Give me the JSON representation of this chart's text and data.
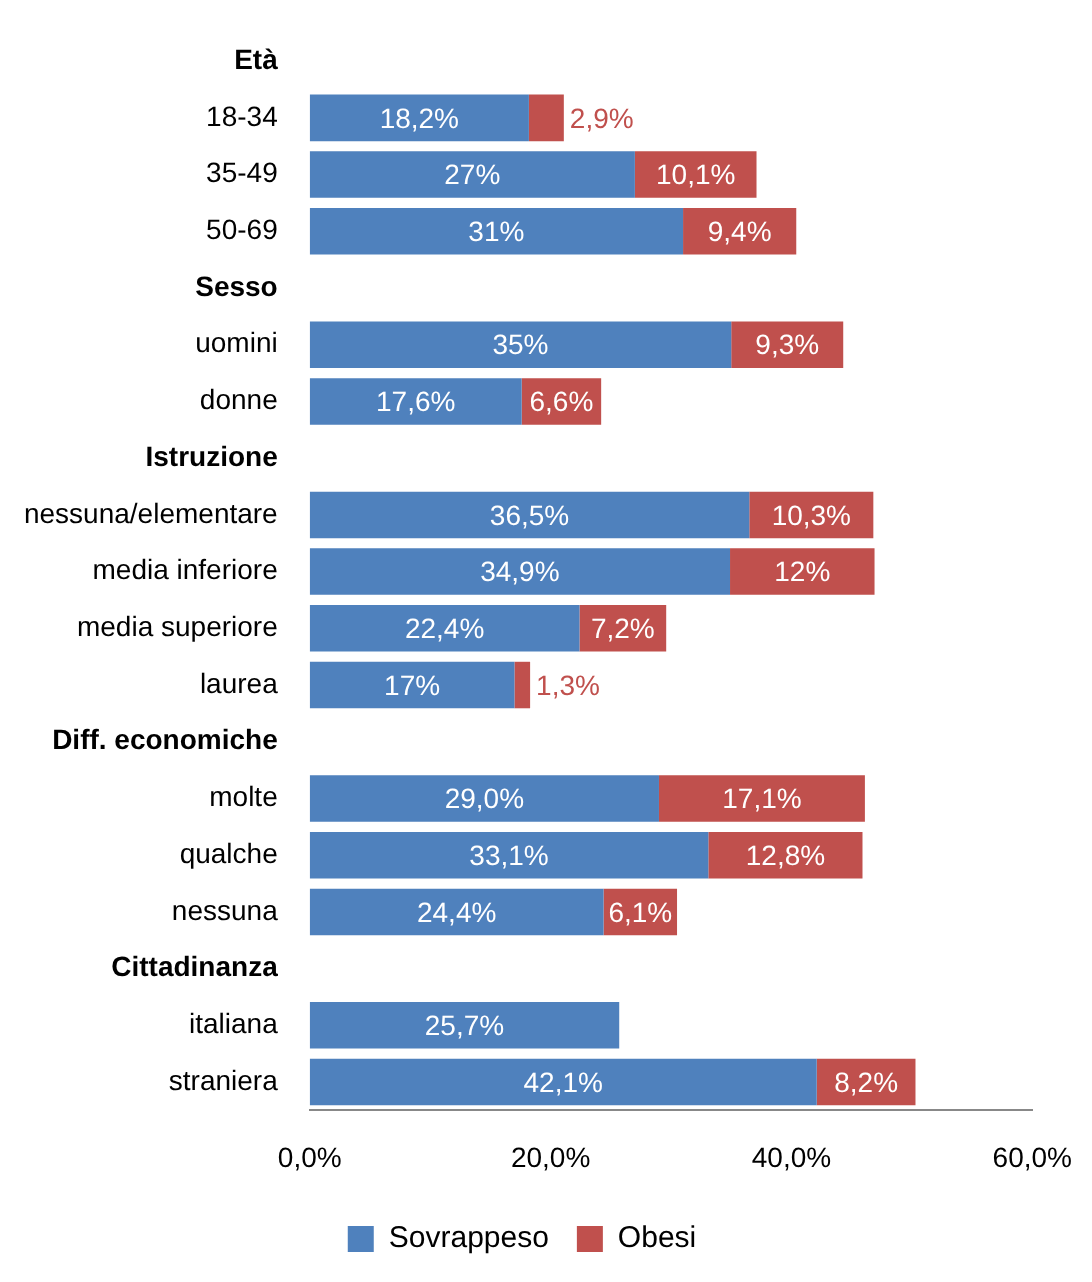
{
  "chart_data": {
    "type": "bar",
    "orientation": "horizontal",
    "stacked": true,
    "categories": [
      "Età",
      "18-34",
      "35-49",
      "50-69",
      "Sesso",
      "uomini",
      "donne",
      "Istruzione",
      "nessuna/elementare",
      "media inferiore",
      "media superiore",
      "laurea",
      "Diff. economiche",
      "molte",
      "qualche",
      "nessuna",
      "Cittadinanza",
      "italiana",
      "straniera"
    ],
    "series": [
      {
        "name": "Sovrappeso",
        "color": "#4f81bd",
        "values": [
          null,
          18.2,
          27,
          31,
          null,
          35,
          17.6,
          null,
          36.5,
          34.9,
          22.4,
          17,
          null,
          29.0,
          33.1,
          24.4,
          null,
          25.7,
          42.1
        ],
        "value_labels": [
          null,
          "18,2%",
          "27%",
          "31%",
          null,
          "35%",
          "17,6%",
          null,
          "36,5%",
          "34,9%",
          "22,4%",
          "17%",
          null,
          "29,0%",
          "33,1%",
          "24,4%",
          null,
          "25,7%",
          "42,1%"
        ]
      },
      {
        "name": "Obesi",
        "color": "#c0504d",
        "values": [
          null,
          2.9,
          10.1,
          9.4,
          null,
          9.3,
          6.6,
          null,
          10.3,
          12,
          7.2,
          1.3,
          null,
          17.1,
          12.8,
          6.1,
          null,
          null,
          8.2
        ],
        "value_labels": [
          null,
          "2,9%",
          "10,1%",
          "9,4%",
          null,
          "9,3%",
          "6,6%",
          null,
          "10,3%",
          "12%",
          "7,2%",
          "1,3%",
          null,
          "17,1%",
          "12,8%",
          "6,1%",
          null,
          null,
          "8,2%"
        ]
      }
    ],
    "xlim": [
      0,
      60
    ],
    "xticks": [
      {
        "value": 0,
        "label": "0,0%"
      },
      {
        "value": 20,
        "label": "20,0%"
      },
      {
        "value": 40,
        "label": "40,0%"
      },
      {
        "value": 60,
        "label": "60,0%"
      }
    ],
    "grid": false,
    "legend": "bottom"
  }
}
